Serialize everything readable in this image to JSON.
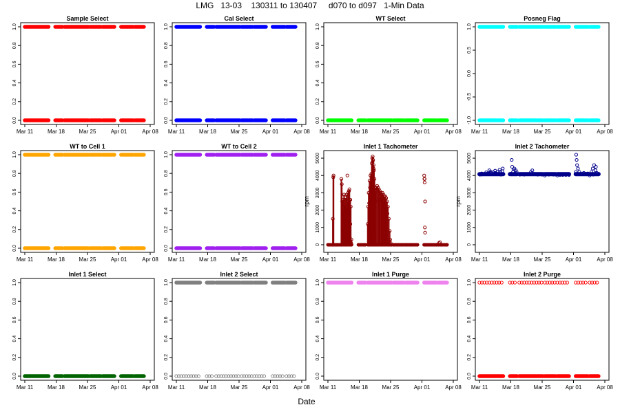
{
  "main_title": "LMG   13-03    130311 to 130407     d070 to d097   1-Min Data",
  "x_axis_label": "Date",
  "x_ticks": [
    "Mar 11",
    "Mar 18",
    "Mar 25",
    "Apr 01",
    "Apr 08"
  ],
  "x_tick_days": [
    0,
    7,
    14,
    21,
    28
  ],
  "data_segments": [
    [
      0,
      5.3
    ],
    [
      6.8,
      8.4
    ],
    [
      8.9,
      14.2
    ],
    [
      14.6,
      17.0
    ],
    [
      17.4,
      20.0
    ],
    [
      21.5,
      24.2
    ],
    [
      24.6,
      26.6
    ]
  ],
  "chart_data": [
    {
      "type": "scatter",
      "title": "Sample Select",
      "ylabel": "",
      "color": "#ff0000",
      "ylim": [
        0,
        1
      ],
      "yticks": [
        0,
        0.2,
        0.4,
        0.6,
        0.8,
        1.0
      ],
      "ytick_labels": [
        "0.0",
        "0.2",
        "0.4",
        "0.6",
        "0.8",
        "1.0"
      ],
      "levels": [
        {
          "value": 1,
          "mode": "dense"
        },
        {
          "value": 0,
          "mode": "dense"
        }
      ]
    },
    {
      "type": "scatter",
      "title": "Cal Select",
      "ylabel": "",
      "color": "#0000ff",
      "ylim": [
        0,
        1
      ],
      "yticks": [
        0,
        0.2,
        0.4,
        0.6,
        0.8,
        1.0
      ],
      "ytick_labels": [
        "0.0",
        "0.2",
        "0.4",
        "0.6",
        "0.8",
        "1.0"
      ],
      "levels": [
        {
          "value": 1,
          "mode": "dense"
        },
        {
          "value": 0,
          "mode": "dense"
        }
      ]
    },
    {
      "type": "scatter",
      "title": "WT Select",
      "ylabel": "",
      "color": "#00ff00",
      "ylim": [
        0,
        1
      ],
      "yticks": [
        0,
        0.2,
        0.4,
        0.6,
        0.8,
        1.0
      ],
      "ytick_labels": [
        "0.0",
        "0.2",
        "0.4",
        "0.6",
        "0.8",
        "1.0"
      ],
      "levels": [
        {
          "value": 0,
          "mode": "dense"
        }
      ]
    },
    {
      "type": "scatter",
      "title": "Posneg Flag",
      "ylabel": "",
      "color": "#00ffff",
      "ylim": [
        -1,
        1
      ],
      "yticks": [
        -1,
        -0.5,
        0,
        0.5,
        1.0
      ],
      "ytick_labels": [
        "-1.0",
        "-0.5",
        "0.0",
        "0.5",
        "1.0"
      ],
      "levels": [
        {
          "value": 1,
          "mode": "dense"
        },
        {
          "value": -1,
          "mode": "dense"
        }
      ]
    },
    {
      "type": "scatter",
      "title": "WT to Cell 1",
      "ylabel": "",
      "color": "#ffa500",
      "ylim": [
        0,
        1
      ],
      "yticks": [
        0,
        0.2,
        0.4,
        0.6,
        0.8,
        1.0
      ],
      "ytick_labels": [
        "0.0",
        "0.2",
        "0.4",
        "0.6",
        "0.8",
        "1.0"
      ],
      "levels": [
        {
          "value": 1,
          "mode": "dense"
        },
        {
          "value": 0,
          "mode": "dense"
        }
      ]
    },
    {
      "type": "scatter",
      "title": "WT to Cell 2",
      "ylabel": "",
      "color": "#a020f0",
      "ylim": [
        0,
        1
      ],
      "yticks": [
        0,
        0.2,
        0.4,
        0.6,
        0.8,
        1.0
      ],
      "ytick_labels": [
        "0.0",
        "0.2",
        "0.4",
        "0.6",
        "0.8",
        "1.0"
      ],
      "levels": [
        {
          "value": 1,
          "mode": "dense"
        },
        {
          "value": 0,
          "mode": "dense"
        }
      ]
    },
    {
      "type": "scatter",
      "title": "Inlet 1 Tachometer",
      "ylabel": "rpm",
      "color": "#8b0000",
      "ylim": [
        -200,
        5200
      ],
      "yticks": [
        0,
        1000,
        2000,
        3000,
        4000,
        5000
      ],
      "ytick_labels": [
        "0",
        "1000",
        "2000",
        "3000",
        "4000",
        "5000"
      ],
      "series": [
        {
          "name": "baseline",
          "points": [
            [
              0.1,
              0
            ],
            [
              1.0,
              0
            ],
            [
              2.0,
              0
            ],
            [
              3.0,
              0
            ],
            [
              4.0,
              0
            ],
            [
              5.2,
              0
            ],
            [
              6.9,
              0
            ],
            [
              8.3,
              0
            ],
            [
              9.0,
              0
            ],
            [
              14.2,
              0
            ],
            [
              14.6,
              0
            ],
            [
              15.5,
              0
            ],
            [
              17.0,
              0
            ],
            [
              17.4,
              0
            ],
            [
              18.5,
              0
            ],
            [
              20.0,
              0
            ],
            [
              21.5,
              0
            ],
            [
              23.0,
              0
            ],
            [
              24.2,
              0
            ],
            [
              24.6,
              0
            ],
            [
              25.5,
              0
            ],
            [
              26.6,
              0
            ]
          ]
        },
        {
          "name": "burst-1",
          "points": [
            [
              1.1,
              1500
            ],
            [
              1.2,
              3900
            ],
            [
              1.25,
              4000
            ],
            [
              3.0,
              3800
            ],
            [
              3.1,
              3500
            ],
            [
              3.2,
              2500
            ],
            [
              3.3,
              1700
            ],
            [
              3.4,
              2600
            ],
            [
              3.5,
              2000
            ],
            [
              3.6,
              2900
            ],
            [
              3.7,
              2300
            ],
            [
              3.8,
              2600
            ],
            [
              3.9,
              1900
            ],
            [
              4.0,
              2700
            ],
            [
              4.1,
              2200
            ],
            [
              4.2,
              2900
            ],
            [
              4.3,
              1500
            ],
            [
              4.4,
              2500
            ],
            [
              4.5,
              3000
            ],
            [
              4.6,
              2000
            ],
            [
              4.7,
              3100
            ],
            [
              4.8,
              3200
            ],
            [
              4.9,
              2600
            ],
            [
              5.0,
              1200
            ],
            [
              5.1,
              2200
            ],
            [
              3.3,
              800
            ],
            [
              3.6,
              500
            ],
            [
              4.0,
              300
            ],
            [
              4.5,
              600
            ],
            [
              4.9,
              400
            ],
            [
              5.2,
              100
            ],
            [
              3.5,
              1200
            ],
            [
              4.2,
              900
            ],
            [
              4.7,
              1400
            ],
            [
              3.8,
              1000
            ],
            [
              4.4,
              1800
            ],
            [
              5.0,
              2600
            ],
            [
              5.25,
              300
            ],
            [
              4.35,
              4000
            ]
          ]
        },
        {
          "name": "burst-2",
          "points": [
            [
              8.9,
              1200
            ],
            [
              9.0,
              2200
            ],
            [
              9.1,
              3000
            ],
            [
              9.2,
              2400
            ],
            [
              9.3,
              3700
            ],
            [
              9.4,
              3300
            ],
            [
              9.5,
              4000
            ],
            [
              9.6,
              3600
            ],
            [
              9.7,
              4100
            ],
            [
              9.8,
              4700
            ],
            [
              9.9,
              5000
            ],
            [
              10.0,
              4800
            ],
            [
              10.1,
              4900
            ],
            [
              10.2,
              4600
            ],
            [
              10.3,
              4300
            ],
            [
              10.4,
              3800
            ],
            [
              10.5,
              3300
            ],
            [
              10.6,
              3100
            ],
            [
              9.2,
              800
            ],
            [
              9.5,
              1500
            ],
            [
              9.8,
              2600
            ],
            [
              10.1,
              3500
            ],
            [
              10.3,
              2800
            ],
            [
              10.5,
              2500
            ],
            [
              9.3,
              400
            ],
            [
              9.6,
              2000
            ],
            [
              10.0,
              5100
            ],
            [
              10.2,
              4400
            ],
            [
              10.8,
              3300
            ],
            [
              11.0,
              3400
            ],
            [
              11.2,
              3300
            ],
            [
              11.4,
              3200
            ],
            [
              11.6,
              3100
            ],
            [
              11.8,
              3000
            ],
            [
              12.0,
              2900
            ],
            [
              12.2,
              3000
            ],
            [
              12.4,
              2900
            ],
            [
              12.6,
              2800
            ],
            [
              12.8,
              2800
            ],
            [
              13.0,
              2700
            ],
            [
              13.2,
              2500
            ],
            [
              13.4,
              2200
            ],
            [
              13.6,
              1500
            ],
            [
              13.8,
              800
            ],
            [
              13.9,
              300
            ],
            [
              14.0,
              100
            ],
            [
              11.5,
              2600
            ],
            [
              12.1,
              2700
            ],
            [
              12.5,
              2500
            ],
            [
              12.9,
              2400
            ],
            [
              13.1,
              2000
            ],
            [
              13.3,
              1800
            ]
          ]
        },
        {
          "name": "spikes",
          "points": [
            [
              21.5,
              4000
            ],
            [
              21.55,
              3800
            ],
            [
              21.6,
              3600
            ],
            [
              21.6,
              3800
            ],
            [
              21.7,
              2500
            ],
            [
              21.65,
              1000
            ],
            [
              21.7,
              700
            ],
            [
              24.8,
              100
            ],
            [
              25.0,
              150
            ]
          ]
        }
      ]
    },
    {
      "type": "scatter",
      "title": "Inlet 2 Tachometer",
      "ylabel": "rpm",
      "color": "#00008b",
      "ylim": [
        -200,
        5200
      ],
      "yticks": [
        0,
        1000,
        2000,
        3000,
        4000,
        5000
      ],
      "ytick_labels": [
        "0",
        "1000",
        "2000",
        "3000",
        "4000",
        "5000"
      ],
      "series": [
        {
          "name": "level",
          "points": [
            [
              0.1,
              4050
            ],
            [
              0.6,
              4060
            ],
            [
              1.1,
              4080
            ],
            [
              1.6,
              4100
            ],
            [
              2.1,
              4120
            ],
            [
              2.6,
              4150
            ],
            [
              3.1,
              4180
            ],
            [
              3.6,
              4150
            ],
            [
              4.1,
              4200
            ],
            [
              4.6,
              4220
            ],
            [
              5.1,
              4250
            ],
            [
              0.5,
              4120
            ],
            [
              1.5,
              4180
            ],
            [
              2.5,
              4230
            ],
            [
              3.5,
              4280
            ],
            [
              4.5,
              4330
            ],
            [
              5.2,
              4400
            ],
            [
              2.2,
              4300
            ],
            [
              3.2,
              4100
            ],
            [
              4.8,
              4050
            ],
            [
              6.9,
              4100
            ],
            [
              7.2,
              4900
            ],
            [
              7.3,
              4500
            ],
            [
              7.5,
              4200
            ],
            [
              7.8,
              4400
            ],
            [
              8.1,
              4300
            ],
            [
              8.3,
              4200
            ],
            [
              7.6,
              4350
            ],
            [
              9.0,
              4050
            ],
            [
              10.0,
              4050
            ],
            [
              11.0,
              4080
            ],
            [
              11.5,
              4200
            ],
            [
              11.8,
              4300
            ],
            [
              12.2,
              4100
            ],
            [
              13.0,
              4050
            ],
            [
              14.0,
              4050
            ],
            [
              14.6,
              4000
            ],
            [
              15.5,
              4050
            ],
            [
              16.5,
              4050
            ],
            [
              17.0,
              4050
            ],
            [
              17.4,
              4000
            ],
            [
              18.0,
              4030
            ],
            [
              18.6,
              4030
            ],
            [
              19.3,
              4030
            ],
            [
              20.0,
              4030
            ],
            [
              21.5,
              4200
            ],
            [
              21.6,
              5200
            ],
            [
              21.7,
              4900
            ],
            [
              21.8,
              4600
            ],
            [
              22.0,
              4400
            ],
            [
              22.3,
              4200
            ],
            [
              22.6,
              4100
            ],
            [
              22.9,
              4100
            ],
            [
              23.3,
              4150
            ],
            [
              23.8,
              4100
            ],
            [
              24.2,
              4120
            ],
            [
              24.6,
              4000
            ],
            [
              25.0,
              4200
            ],
            [
              25.3,
              4400
            ],
            [
              25.6,
              4600
            ],
            [
              25.9,
              4300
            ],
            [
              26.2,
              4150
            ],
            [
              26.6,
              4100
            ],
            [
              25.4,
              4050
            ],
            [
              26.0,
              4500
            ]
          ]
        }
      ]
    },
    {
      "type": "scatter",
      "title": "Inlet 1 Select",
      "ylabel": "",
      "color": "#006400",
      "ylim": [
        0,
        1
      ],
      "yticks": [
        0,
        0.2,
        0.4,
        0.6,
        0.8,
        1.0
      ],
      "ytick_labels": [
        "0.0",
        "0.2",
        "0.4",
        "0.6",
        "0.8",
        "1.0"
      ],
      "levels": [
        {
          "value": 0,
          "mode": "dense"
        }
      ]
    },
    {
      "type": "scatter",
      "title": "Inlet 2 Select",
      "ylabel": "",
      "color": "#808080",
      "ylim": [
        0,
        1
      ],
      "yticks": [
        0,
        0.2,
        0.4,
        0.6,
        0.8,
        1.0
      ],
      "ytick_labels": [
        "0.0",
        "0.2",
        "0.4",
        "0.6",
        "0.8",
        "1.0"
      ],
      "levels": [
        {
          "value": 1,
          "mode": "dense"
        },
        {
          "value": 0,
          "mode": "sparse"
        }
      ]
    },
    {
      "type": "scatter",
      "title": "Inlet 1 Purge",
      "ylabel": "",
      "color": "#ee82ee",
      "ylim": [
        0,
        1
      ],
      "yticks": [
        0,
        0.2,
        0.4,
        0.6,
        0.8,
        1.0
      ],
      "ytick_labels": [
        "0.0",
        "0.2",
        "0.4",
        "0.6",
        "0.8",
        "1.0"
      ],
      "levels": [
        {
          "value": 1,
          "mode": "dense"
        }
      ]
    },
    {
      "type": "scatter",
      "title": "Inlet 2 Purge",
      "ylabel": "",
      "color": "#ff0000",
      "ylim": [
        0,
        1
      ],
      "yticks": [
        0,
        0.2,
        0.4,
        0.6,
        0.8,
        1.0
      ],
      "ytick_labels": [
        "0.0",
        "0.2",
        "0.4",
        "0.6",
        "0.8",
        "1.0"
      ],
      "levels": [
        {
          "value": 1,
          "mode": "sparse"
        },
        {
          "value": 0,
          "mode": "dense"
        }
      ]
    }
  ]
}
